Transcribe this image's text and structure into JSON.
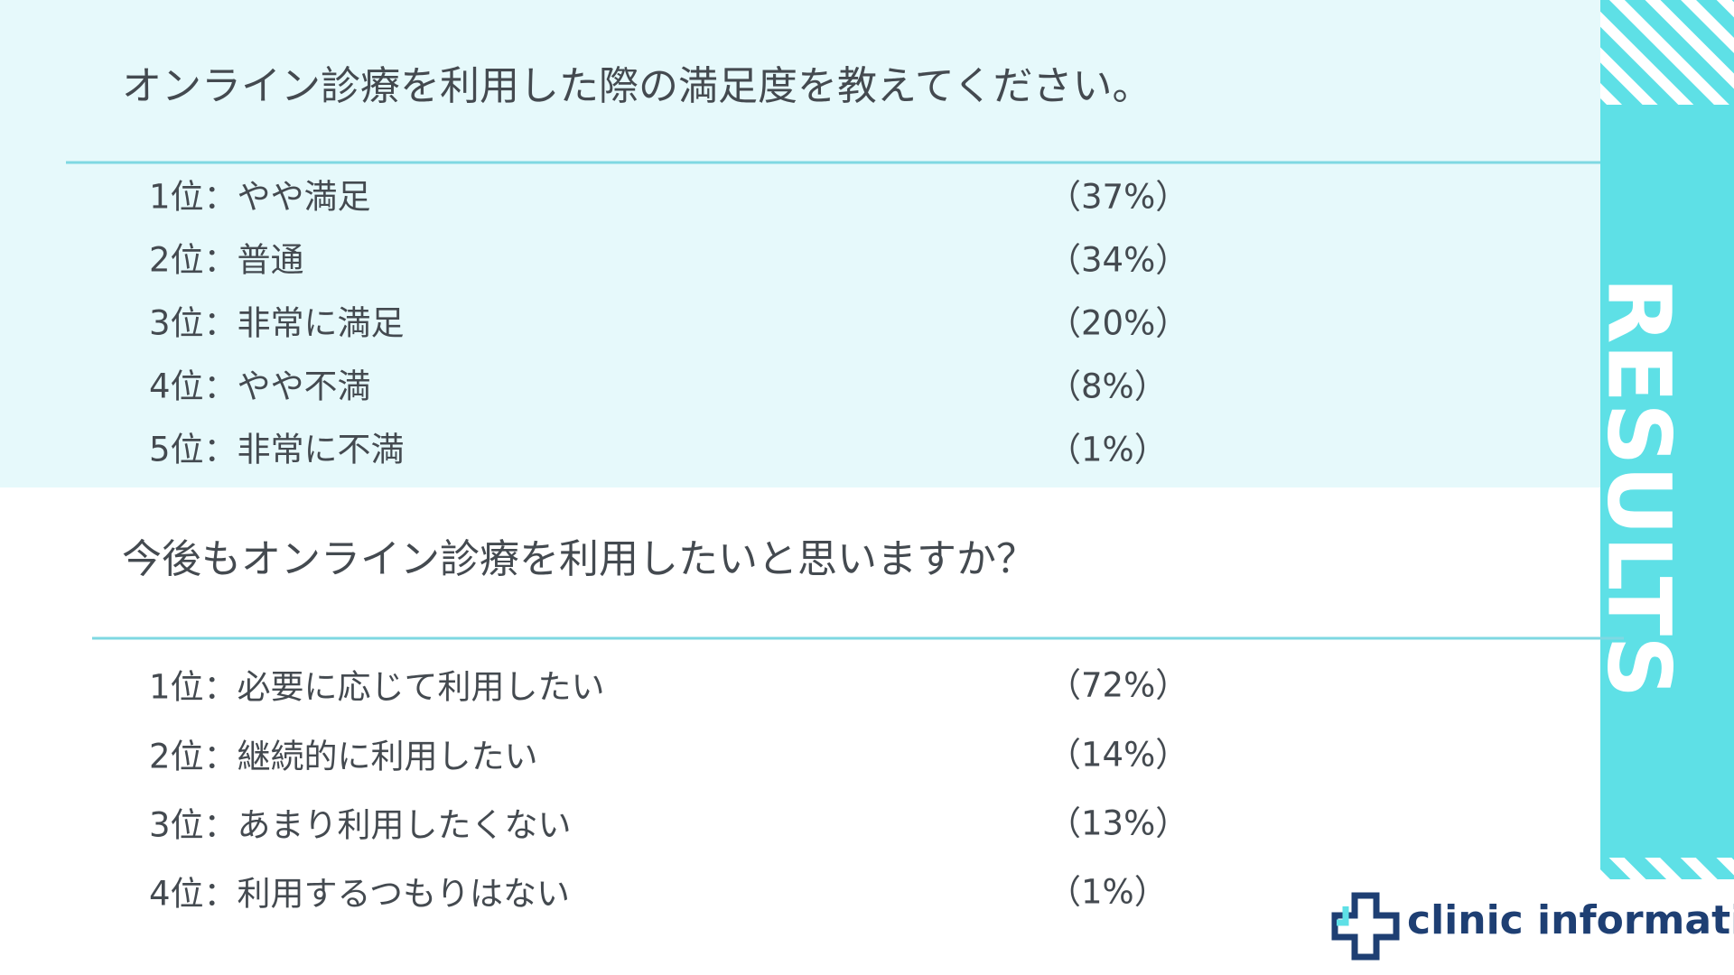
{
  "sections": [
    {
      "question": "オンライン診療を利用した際の満足度を教えてください。",
      "items": [
        {
          "label": "1位：やや満足",
          "percent": "（37%）"
        },
        {
          "label": "2位：普通",
          "percent": "（34%）"
        },
        {
          "label": "3位：非常に満足",
          "percent": "（20%）"
        },
        {
          "label": "4位：やや不満",
          "percent": "（8%）"
        },
        {
          "label": "5位：非常に不満",
          "percent": "（1%）"
        }
      ]
    },
    {
      "question": "今後もオンライン診療を利用したいと思いますか？",
      "items": [
        {
          "label": "1位：必要に応じて利用したい",
          "percent": "（72%）"
        },
        {
          "label": "2位：継続的に利用したい",
          "percent": "（14%）"
        },
        {
          "label": "3位：あまり利用したくない",
          "percent": "（13%）"
        },
        {
          "label": "4位：利用するつもりはない",
          "percent": "（1%）"
        }
      ]
    }
  ],
  "sidebar": {
    "title": "RESULTS"
  },
  "logo": {
    "text": "clinic information"
  }
}
